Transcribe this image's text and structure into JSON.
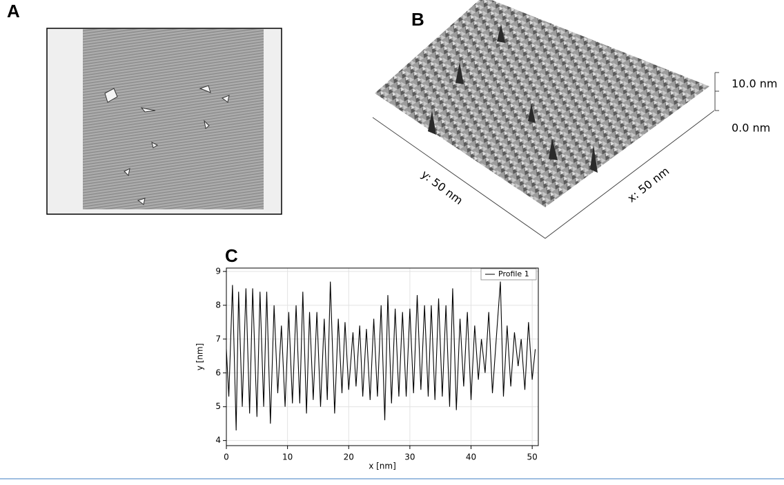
{
  "panel_labels": [
    "A",
    "B",
    "C"
  ],
  "surface": {
    "scale_labels": [
      "10.0 nm",
      "0.0 nm"
    ],
    "axis_labels": [
      "y: 50 nm",
      "x: 50 nm"
    ]
  },
  "chart_data": {
    "type": "line",
    "x_label": "x [nm]",
    "y_label": "y [nm]",
    "x": [
      0,
      0.4,
      1.0,
      1.6,
      2.0,
      2.6,
      3.2,
      3.8,
      4.3,
      5.0,
      5.5,
      6.1,
      6.6,
      7.2,
      7.8,
      8.4,
      9.0,
      9.6,
      10.2,
      10.8,
      11.4,
      12.0,
      12.5,
      13.1,
      13.6,
      14.2,
      14.8,
      15.4,
      16.0,
      16.5,
      17.0,
      17.7,
      18.3,
      18.9,
      19.4,
      20.0,
      20.7,
      21.2,
      21.8,
      22.3,
      22.9,
      23.5,
      24.1,
      24.7,
      25.3,
      25.9,
      26.4,
      27.0,
      27.6,
      28.2,
      28.8,
      29.4,
      30.0,
      30.6,
      31.2,
      31.8,
      32.4,
      33.0,
      33.5,
      34.1,
      34.7,
      35.3,
      35.9,
      36.5,
      37.0,
      37.6,
      38.2,
      38.8,
      39.4,
      40.0,
      40.6,
      41.2,
      41.7,
      42.3,
      42.9,
      43.5,
      44.2,
      44.8,
      45.3,
      45.9,
      46.5,
      47.1,
      47.7,
      48.2,
      48.8,
      49.4,
      50.0,
      50.5
    ],
    "series": [
      {
        "name": "Profile 1",
        "color": "#000000",
        "values": [
          6.7,
          5.3,
          8.6,
          4.3,
          8.4,
          5.0,
          8.5,
          4.8,
          8.5,
          4.7,
          8.4,
          5.0,
          8.4,
          4.5,
          8.0,
          5.4,
          7.4,
          5.0,
          7.8,
          5.1,
          8.0,
          5.1,
          8.4,
          4.8,
          7.8,
          5.2,
          7.8,
          5.0,
          7.6,
          5.2,
          8.7,
          4.8,
          7.6,
          5.4,
          7.5,
          5.5,
          7.2,
          5.6,
          7.4,
          5.3,
          7.3,
          5.2,
          7.6,
          5.3,
          8.0,
          4.6,
          8.3,
          5.1,
          7.9,
          5.3,
          7.8,
          5.3,
          7.9,
          5.4,
          8.3,
          5.5,
          8.0,
          5.3,
          8.0,
          5.2,
          8.2,
          5.3,
          8.0,
          5.0,
          8.5,
          4.9,
          7.6,
          5.6,
          7.8,
          5.2,
          7.4,
          5.8,
          7.0,
          6.0,
          7.8,
          5.4,
          7.2,
          8.7,
          5.3,
          7.4,
          5.6,
          7.2,
          6.2,
          7.0,
          5.5,
          7.5,
          5.8,
          6.7
        ]
      }
    ],
    "xlim": [
      0,
      51
    ],
    "ylim": [
      3.85,
      9.1
    ],
    "xticks": [
      0,
      10,
      20,
      30,
      40,
      50
    ],
    "yticks": [
      4,
      5,
      6,
      7,
      8,
      9
    ],
    "grid": true,
    "legend": "upper right"
  }
}
